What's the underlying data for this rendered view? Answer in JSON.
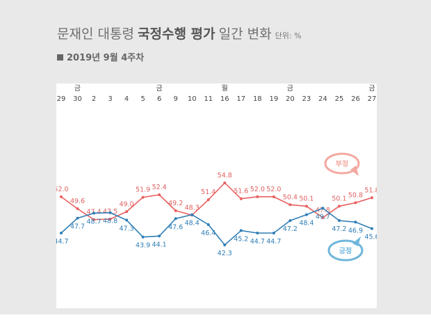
{
  "title": {
    "part1": "문재인 대통령",
    "part2": "국정수행 평가",
    "part3": "일간 변화",
    "unit": "단위: %"
  },
  "subtitle": "2019년 9월 4주차",
  "colors": {
    "negative": "#e95f5f",
    "positive": "#2f7eb5",
    "negative_bubble": "#f3a9a0",
    "positive_bubble": "#6fb6dc"
  },
  "chart_data": {
    "type": "line",
    "x": [
      "29",
      "30",
      "2",
      "3",
      "4",
      "5",
      "6",
      "9",
      "10",
      "11",
      "16",
      "17",
      "18",
      "19",
      "20",
      "23",
      "24",
      "25",
      "26",
      "27"
    ],
    "weekday_marks": [
      {
        "index": 1,
        "label": "금"
      },
      {
        "index": 6,
        "label": "금"
      },
      {
        "index": 10,
        "label": "월"
      },
      {
        "index": 14,
        "label": "금"
      },
      {
        "index": 19,
        "label": "금"
      }
    ],
    "ylim": [
      30,
      65
    ],
    "series": [
      {
        "name": "부정",
        "values": [
          52.0,
          49.6,
          47.4,
          47.5,
          49.0,
          51.9,
          52.4,
          49.2,
          48.3,
          51.4,
          54.8,
          51.6,
          52.0,
          52.0,
          50.4,
          50.1,
          47.8,
          50.1,
          50.8,
          51.8
        ],
        "labels": [
          "52.0",
          "49.6",
          "47.4",
          "47.5",
          "49.0",
          "51.9",
          "52.4",
          "49.2",
          "48.3",
          "51.4",
          "54.8",
          "51.6",
          "52.0",
          "52.0",
          "50.4",
          "50.1",
          "47.8",
          "50.1",
          "50.8",
          "51.8"
        ]
      },
      {
        "name": "긍정",
        "values": [
          44.7,
          47.7,
          48.7,
          48.8,
          47.3,
          43.9,
          44.1,
          47.6,
          48.4,
          46.4,
          42.3,
          45.2,
          44.7,
          44.7,
          47.2,
          48.4,
          49.7,
          47.2,
          46.9,
          45.6
        ],
        "labels": [
          "44.7",
          "47.7",
          "48.7",
          "48.8",
          "47.3",
          "43.9",
          "44.1",
          "47.6",
          "48.4",
          "46.4",
          "42.3",
          "45.2",
          "44.7",
          "44.7",
          "47.2",
          "48.4",
          "49.7",
          "47.2",
          "46.9",
          "45.6"
        ]
      }
    ],
    "grid": false,
    "legend": "bubbles-right"
  }
}
